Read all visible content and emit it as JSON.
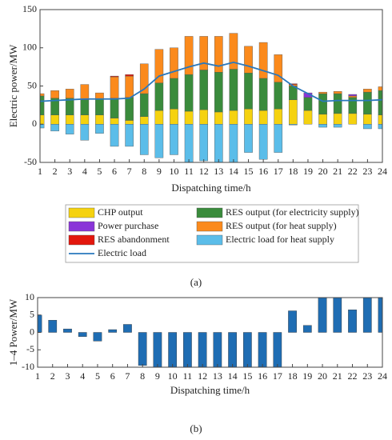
{
  "chart_data": [
    {
      "type": "stacked-bar",
      "caption": "(a)",
      "xlabel": "Dispatching time/h",
      "ylabel": "Electric power/MW",
      "x": [
        1,
        2,
        3,
        4,
        5,
        6,
        7,
        8,
        9,
        10,
        11,
        12,
        13,
        14,
        15,
        16,
        17,
        18,
        19,
        20,
        21,
        22,
        23,
        24
      ],
      "xlim": [
        1,
        24
      ],
      "xticks": [
        1,
        2,
        3,
        4,
        5,
        6,
        7,
        8,
        9,
        10,
        11,
        12,
        13,
        14,
        15,
        16,
        17,
        18,
        19,
        20,
        21,
        22,
        23,
        24
      ],
      "ylim": [
        -50,
        150
      ],
      "yticks": [
        -50,
        0,
        50,
        100,
        150
      ],
      "series": [
        {
          "name": "CHP output",
          "color": "#f5d20f",
          "values": [
            12,
            12,
            12,
            12,
            12,
            8,
            5,
            10,
            18,
            20,
            17,
            19,
            16,
            18,
            20,
            18,
            20,
            32,
            18,
            13,
            14,
            14,
            13,
            12
          ]
        },
        {
          "name": "RES output (for electricity supply)",
          "color": "#3a8b3c",
          "values": [
            25,
            22,
            22,
            20,
            21,
            26,
            30,
            30,
            36,
            40,
            48,
            52,
            52,
            54,
            47,
            42,
            35,
            18,
            17,
            27,
            26,
            21,
            29,
            32
          ]
        },
        {
          "name": "RES output (for heat supply)",
          "color": "#fb8a1c",
          "values": [
            3,
            10,
            12,
            20,
            8,
            28,
            28,
            39,
            44,
            40,
            50,
            44,
            47,
            47,
            35,
            47,
            36,
            2,
            0,
            2,
            3,
            2,
            4,
            5
          ]
        },
        {
          "name": "Power purchase",
          "color": "#8a35d8",
          "values": [
            0,
            0,
            0,
            0,
            0,
            0,
            0,
            0,
            0,
            0,
            0,
            0,
            0,
            0,
            0,
            0,
            0,
            0,
            6,
            0,
            0,
            2,
            0,
            0
          ]
        },
        {
          "name": "RES abandonment",
          "color": "#e3170d",
          "values": [
            0,
            0,
            0,
            0,
            0,
            1,
            2,
            0,
            0,
            0,
            0,
            0,
            0,
            0,
            0,
            0,
            0,
            1,
            0,
            0,
            0,
            0,
            0,
            0
          ]
        },
        {
          "name": "Electric load for heat supply",
          "color": "#5bbde9",
          "values": [
            -5,
            -9,
            -13,
            -21,
            -12,
            -29,
            -29,
            -40,
            -44,
            -40,
            -50,
            -48,
            -50,
            -50,
            -37,
            -46,
            -37,
            -1,
            0,
            -4,
            -4,
            0,
            -6,
            -6
          ]
        },
        {
          "name": "Electric load",
          "type": "line",
          "color": "#2a78bd",
          "values": [
            30,
            31,
            32,
            33,
            33,
            33,
            34,
            46,
            63,
            69,
            75,
            80,
            76,
            81,
            76,
            70,
            64,
            50,
            40,
            30,
            31,
            31,
            31,
            32
          ]
        }
      ]
    },
    {
      "type": "bar",
      "caption": "(b)",
      "xlabel": "Dispatching time/h",
      "ylabel": "1–4 Power/MW",
      "color": "#1f6db3",
      "x": [
        1,
        2,
        3,
        4,
        5,
        6,
        7,
        8,
        9,
        10,
        11,
        12,
        13,
        14,
        15,
        16,
        17,
        18,
        19,
        20,
        21,
        22,
        23,
        24
      ],
      "xlim": [
        1,
        24
      ],
      "xticks": [
        1,
        2,
        3,
        4,
        5,
        6,
        7,
        8,
        9,
        10,
        11,
        12,
        13,
        14,
        15,
        16,
        17,
        18,
        19,
        20,
        21,
        22,
        23,
        24
      ],
      "ylim": [
        -10,
        10
      ],
      "yticks": [
        -10,
        -5,
        0,
        5,
        10
      ],
      "values": [
        5,
        3.5,
        1,
        -1.2,
        -2.5,
        0.8,
        2.3,
        -9.5,
        -10,
        -10,
        -10,
        -10,
        -10,
        -10,
        -10,
        -10,
        -10,
        6.2,
        2,
        10,
        10,
        6.5,
        10,
        10
      ]
    }
  ]
}
